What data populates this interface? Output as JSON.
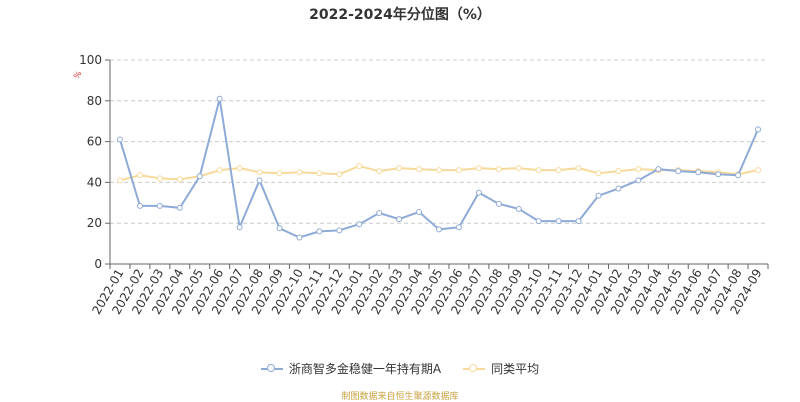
{
  "chart_data": {
    "type": "line",
    "title": "2022-2024年分位图（%）",
    "unit_label": "%",
    "ylim": [
      0,
      100
    ],
    "yticks": [
      0,
      20,
      40,
      60,
      80,
      100
    ],
    "grid": true,
    "legend_position": "bottom",
    "categories": [
      "2022-01",
      "2022-02",
      "2022-03",
      "2022-04",
      "2022-05",
      "2022-06",
      "2022-07",
      "2022-08",
      "2022-09",
      "2022-10",
      "2022-11",
      "2022-12",
      "2023-01",
      "2023-02",
      "2023-03",
      "2023-04",
      "2023-05",
      "2023-06",
      "2023-07",
      "2023-08",
      "2023-09",
      "2023-10",
      "2023-11",
      "2023-12",
      "2024-01",
      "2024-02",
      "2024-03",
      "2024-04",
      "2024-05",
      "2024-06",
      "2024-07",
      "2024-08",
      "2024-09"
    ],
    "series": [
      {
        "name": "浙商智多金稳健一年持有期A",
        "color": "#8eaad6",
        "values": [
          61,
          28.5,
          28.5,
          27.5,
          43,
          81,
          18,
          41,
          17.5,
          13,
          16,
          16.5,
          19.5,
          25,
          22,
          25.5,
          17,
          18,
          35,
          29.5,
          27,
          21,
          21,
          21,
          33.5,
          37,
          41,
          46.5,
          45.5,
          45,
          44,
          43.5,
          66
        ]
      },
      {
        "name": "同类平均",
        "color": "#f7d99a",
        "values": [
          41,
          43.5,
          42,
          41.5,
          43,
          46,
          47,
          45,
          44.5,
          45,
          44.5,
          44,
          48,
          45.5,
          47,
          46.5,
          46,
          46,
          47,
          46.5,
          47,
          46,
          46,
          47,
          44.5,
          45.5,
          46.5,
          46,
          46,
          45.5,
          45,
          44,
          46
        ]
      }
    ]
  },
  "source_note": "制图数据来自恒生聚源数据库"
}
